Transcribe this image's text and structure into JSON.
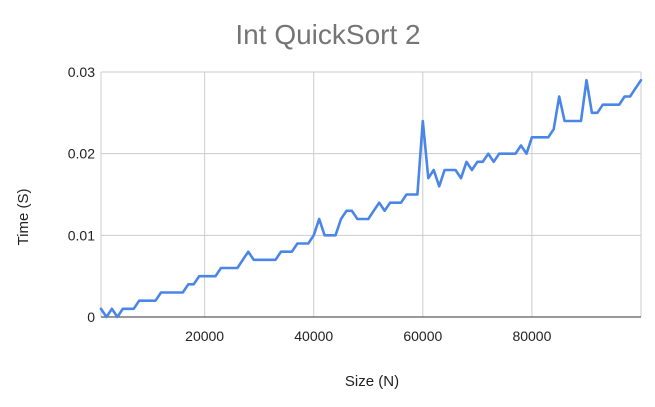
{
  "chart_data": {
    "type": "line",
    "title": "Int QuickSort 2",
    "xlabel": "Size (N)",
    "ylabel": "Time (S)",
    "xlim": [
      1000,
      100000
    ],
    "ylim": [
      0,
      0.03
    ],
    "xticks": [
      20000,
      40000,
      60000,
      80000
    ],
    "xtick_labels": [
      "20000",
      "40000",
      "60000",
      "80000"
    ],
    "yticks": [
      0,
      0.01,
      0.02,
      0.03
    ],
    "ytick_labels": [
      "0",
      "0.01",
      "0.02",
      "0.03"
    ],
    "grid": true,
    "legend": "none",
    "series": [
      {
        "color": "#4a86e8",
        "x": [
          1000,
          2000,
          3000,
          4000,
          5000,
          6000,
          7000,
          8000,
          9000,
          10000,
          11000,
          12000,
          13000,
          14000,
          15000,
          16000,
          17000,
          18000,
          19000,
          20000,
          21000,
          22000,
          23000,
          24000,
          25000,
          26000,
          27000,
          28000,
          29000,
          30000,
          31000,
          32000,
          33000,
          34000,
          35000,
          36000,
          37000,
          38000,
          39000,
          40000,
          41000,
          42000,
          43000,
          44000,
          45000,
          46000,
          47000,
          48000,
          49000,
          50000,
          51000,
          52000,
          53000,
          54000,
          55000,
          56000,
          57000,
          58000,
          59000,
          60000,
          61000,
          62000,
          63000,
          64000,
          65000,
          66000,
          67000,
          68000,
          69000,
          70000,
          71000,
          72000,
          73000,
          74000,
          75000,
          76000,
          77000,
          78000,
          79000,
          80000,
          81000,
          82000,
          83000,
          84000,
          85000,
          86000,
          87000,
          88000,
          89000,
          90000,
          91000,
          92000,
          93000,
          94000,
          95000,
          96000,
          97000,
          98000,
          99000,
          100000
        ],
        "y": [
          0.001,
          0,
          0.001,
          0,
          0.001,
          0.001,
          0.001,
          0.002,
          0.002,
          0.002,
          0.002,
          0.003,
          0.003,
          0.003,
          0.003,
          0.003,
          0.004,
          0.004,
          0.005,
          0.005,
          0.005,
          0.005,
          0.006,
          0.006,
          0.006,
          0.006,
          0.007,
          0.008,
          0.007,
          0.007,
          0.007,
          0.007,
          0.007,
          0.008,
          0.008,
          0.008,
          0.009,
          0.009,
          0.009,
          0.01,
          0.012,
          0.01,
          0.01,
          0.01,
          0.012,
          0.013,
          0.013,
          0.012,
          0.012,
          0.012,
          0.013,
          0.014,
          0.013,
          0.014,
          0.014,
          0.014,
          0.015,
          0.015,
          0.015,
          0.024,
          0.017,
          0.018,
          0.016,
          0.018,
          0.018,
          0.018,
          0.017,
          0.019,
          0.018,
          0.019,
          0.019,
          0.02,
          0.019,
          0.02,
          0.02,
          0.02,
          0.02,
          0.021,
          0.02,
          0.022,
          0.022,
          0.022,
          0.022,
          0.023,
          0.027,
          0.024,
          0.024,
          0.024,
          0.024,
          0.029,
          0.025,
          0.025,
          0.026,
          0.026,
          0.026,
          0.026,
          0.027,
          0.027,
          0.028,
          0.029
        ]
      }
    ]
  }
}
